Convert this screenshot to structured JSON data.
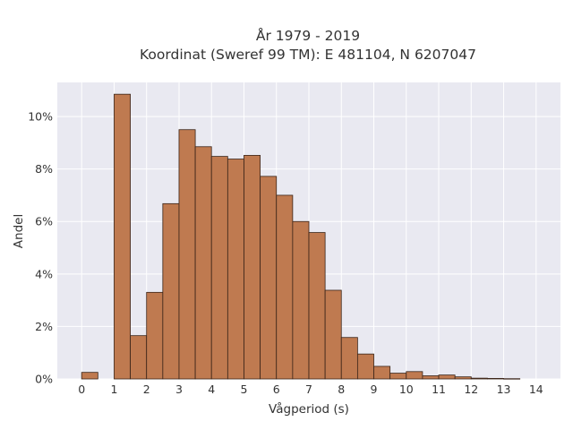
{
  "chart_data": {
    "type": "bar",
    "title_line1": "År 1979 - 2019",
    "title_line2": "Koordinat (Sweref 99 TM): E 481104, N 6207047",
    "xlabel": "Vågperiod (s)",
    "ylabel": "Andel",
    "xlim": [
      -0.75,
      14.75
    ],
    "ylim": [
      0,
      0.113
    ],
    "xticks": [
      0,
      1,
      2,
      3,
      4,
      5,
      6,
      7,
      8,
      9,
      10,
      11,
      12,
      13,
      14
    ],
    "yticks": [
      0,
      0.02,
      0.04,
      0.06,
      0.08,
      0.1
    ],
    "ytick_labels": [
      "0%",
      "2%",
      "4%",
      "6%",
      "8%",
      "10%"
    ],
    "bin_width": 0.5,
    "bin_starts": [
      0,
      0.5,
      1,
      1.5,
      2,
      2.5,
      3,
      3.5,
      4,
      4.5,
      5,
      5.5,
      6,
      6.5,
      7,
      7.5,
      8,
      8.5,
      9,
      9.5,
      10,
      10.5,
      11,
      11.5,
      12,
      12.5,
      13
    ],
    "values": [
      0.0025,
      0,
      0.1085,
      0.0165,
      0.033,
      0.0668,
      0.095,
      0.0885,
      0.0848,
      0.0838,
      0.0852,
      0.0772,
      0.07,
      0.06,
      0.0558,
      0.0338,
      0.0158,
      0.0095,
      0.0048,
      0.0022,
      0.0028,
      0.0012,
      0.0015,
      0.0008,
      0.0003,
      0.0002,
      0.0001
    ],
    "grid": true,
    "bar_color": "#bf7a50",
    "bar_edge_color": "#3a2418",
    "plot_background": "#e9e9f1"
  }
}
